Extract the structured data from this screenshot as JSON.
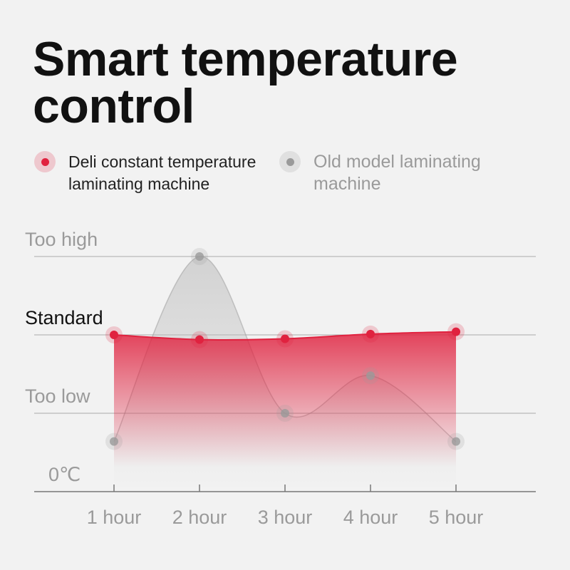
{
  "chart_data": {
    "type": "line",
    "title": "Smart temperature control",
    "categories": [
      "1 hour",
      "2 hour",
      "3 hour",
      "4 hour",
      "5 hour"
    ],
    "series": [
      {
        "name": "Deli constant temperature laminating machine",
        "color": "#e0223f",
        "values": [
          2.0,
          1.94,
          1.95,
          2.01,
          2.04
        ]
      },
      {
        "name": "Old model laminating machine",
        "color": "#9a9a9a",
        "values": [
          0.64,
          3.0,
          1.0,
          1.48,
          0.64
        ]
      }
    ],
    "ylim": [
      0,
      3
    ],
    "yticks": [
      {
        "value": 0,
        "label": "0℃"
      },
      {
        "value": 1,
        "label": "Too low"
      },
      {
        "value": 2,
        "label": "Standard"
      },
      {
        "value": 3,
        "label": "Too high"
      }
    ],
    "grid": true
  }
}
